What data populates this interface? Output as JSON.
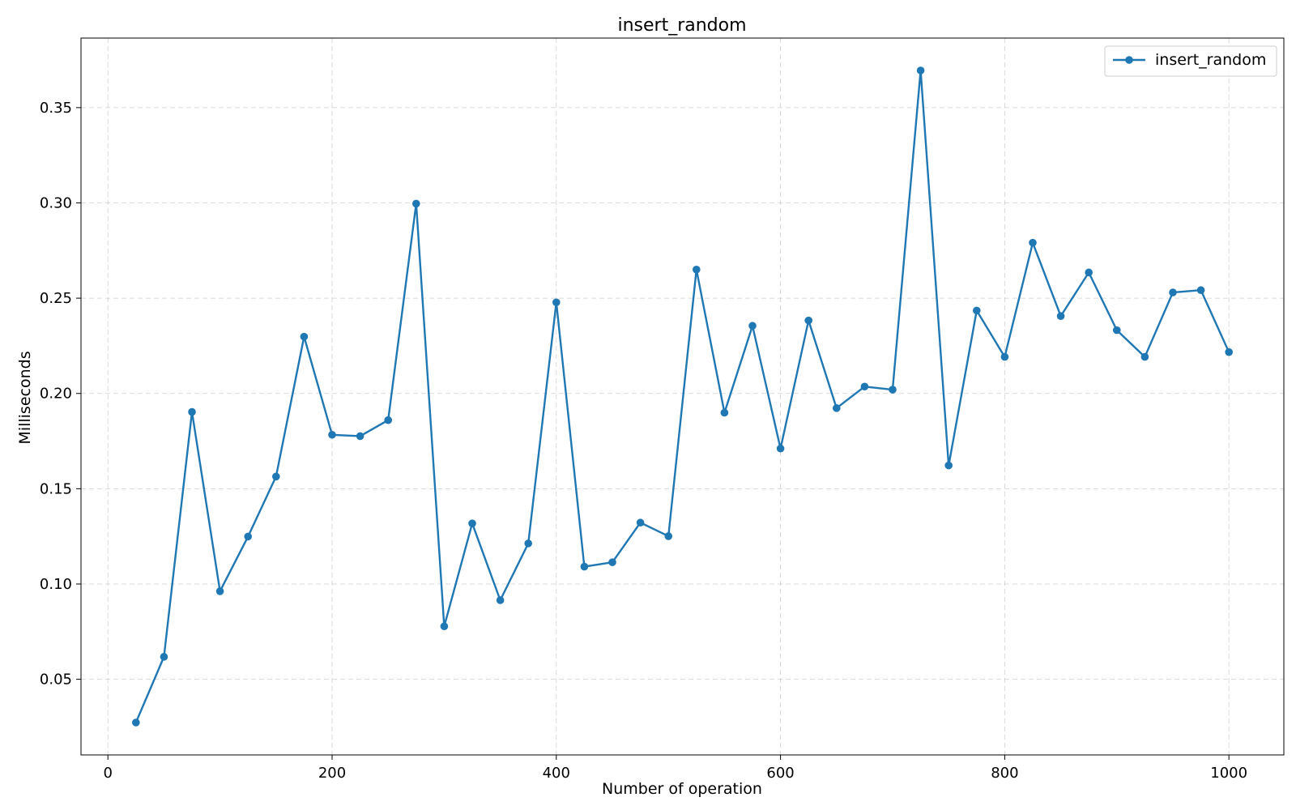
{
  "chart_data": {
    "type": "line",
    "title": "insert_random",
    "xlabel": "Number of operation",
    "ylabel": "Milliseconds",
    "xlim": [
      -24,
      1049
    ],
    "ylim": [
      0.0103,
      0.3865
    ],
    "xticks": [
      0,
      200,
      400,
      600,
      800,
      1000
    ],
    "yticks": [
      0.05,
      0.1,
      0.15,
      0.2,
      0.25,
      0.3,
      0.35
    ],
    "xtick_labels": [
      "0",
      "200",
      "400",
      "600",
      "800",
      "1000"
    ],
    "ytick_labels": [
      "0.05",
      "0.10",
      "0.15",
      "0.20",
      "0.25",
      "0.30",
      "0.35"
    ],
    "grid": true,
    "legend_position": "top-right",
    "series": [
      {
        "name": "insert_random",
        "color": "#1f77b4",
        "marker": "circle",
        "x": [
          25,
          50,
          75,
          100,
          125,
          150,
          175,
          200,
          225,
          250,
          275,
          300,
          325,
          350,
          375,
          400,
          425,
          450,
          475,
          500,
          525,
          550,
          575,
          600,
          625,
          650,
          675,
          700,
          725,
          750,
          775,
          800,
          825,
          850,
          875,
          900,
          925,
          950,
          975,
          1000
        ],
        "y": [
          0.0273,
          0.0618,
          0.1903,
          0.0962,
          0.1249,
          0.1564,
          0.2298,
          0.1783,
          0.1776,
          0.186,
          0.2996,
          0.0778,
          0.1318,
          0.0915,
          0.1213,
          0.2478,
          0.1091,
          0.1114,
          0.1322,
          0.1251,
          0.265,
          0.1899,
          0.2355,
          0.1711,
          0.2383,
          0.1923,
          0.2036,
          0.202,
          0.3695,
          0.1622,
          0.2435,
          0.2192,
          0.2791,
          0.2406,
          0.2635,
          0.2332,
          0.2192,
          0.253,
          0.2542,
          0.2217
        ]
      }
    ]
  }
}
